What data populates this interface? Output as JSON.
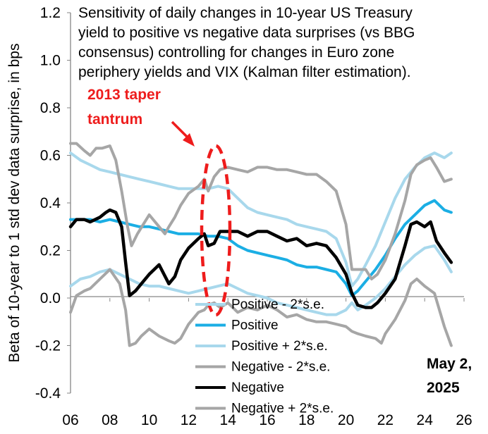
{
  "chart_data": {
    "type": "line",
    "title": "Sensitivity of daily changes in 10-year US Treasury yield to positive vs negative data surprises (vs BBG consensus) controlling for changes in Euro zone periphery yields and VIX (Kalman filter estimation).",
    "title_lines": [
      "Sensitivity of daily changes in 10-year US Treasury",
      "yield to positive vs negative data surprises (vs BBG",
      "consensus) controlling for changes in Euro zone",
      "periphery yields and VIX (Kalman filter estimation)."
    ],
    "ylabel": "Beta of 10-year to 1 std dev data surprise, in bps",
    "xlabel": "",
    "xlim": [
      2006,
      2026
    ],
    "ylim": [
      -0.4,
      1.2
    ],
    "x_ticks": [
      "06",
      "08",
      "10",
      "12",
      "14",
      "16",
      "18",
      "20",
      "22",
      "24",
      "26"
    ],
    "y_ticks": [
      "-0.4",
      "-0.2",
      "0.0",
      "0.2",
      "0.4",
      "0.6",
      "0.8",
      "1.0",
      "1.2"
    ],
    "grid": false,
    "legend_position": "bottom-center",
    "annotations": {
      "taper": {
        "line1": "2013 taper",
        "line2": "tantrum",
        "color": "#ee1c1c"
      },
      "date": {
        "line1": "May 2,",
        "line2": "2025"
      }
    },
    "colors": {
      "positive": "#1baee4",
      "positive_band": "#a8d8ec",
      "negative": "#000000",
      "negative_band": "#a6a6a6",
      "highlight": "#ee1c1c"
    },
    "series": [
      {
        "name": "Positive - 2*s.e.",
        "color": "#a8d8ec",
        "x": [
          2006.0,
          2006.5,
          2007.0,
          2007.5,
          2008.0,
          2008.5,
          2009.0,
          2009.5,
          2010.0,
          2010.5,
          2011.0,
          2011.5,
          2012.0,
          2012.5,
          2013.0,
          2013.5,
          2014.0,
          2014.5,
          2015.0,
          2015.5,
          2016.0,
          2016.5,
          2017.0,
          2017.5,
          2018.0,
          2018.5,
          2019.0,
          2019.5,
          2020.0,
          2020.3,
          2020.6,
          2021.0,
          2021.5,
          2022.0,
          2022.5,
          2023.0,
          2023.5,
          2024.0,
          2024.5,
          2025.0,
          2025.35
        ],
        "values": [
          0.05,
          0.08,
          0.09,
          0.11,
          0.12,
          0.1,
          0.08,
          0.06,
          0.05,
          0.05,
          0.04,
          0.03,
          0.02,
          0.03,
          0.04,
          0.05,
          0.06,
          0.04,
          0.02,
          0.01,
          0.0,
          -0.02,
          -0.03,
          -0.04,
          -0.05,
          -0.06,
          -0.07,
          -0.07,
          -0.05,
          -0.02,
          -0.05,
          -0.03,
          0.0,
          0.04,
          0.09,
          0.14,
          0.18,
          0.21,
          0.22,
          0.16,
          0.11
        ]
      },
      {
        "name": "Positive",
        "color": "#1baee4",
        "x": [
          2006.0,
          2006.5,
          2007.0,
          2007.5,
          2008.0,
          2008.5,
          2009.0,
          2009.5,
          2010.0,
          2010.5,
          2011.0,
          2011.5,
          2012.0,
          2012.5,
          2013.0,
          2013.5,
          2014.0,
          2014.5,
          2015.0,
          2015.5,
          2016.0,
          2016.5,
          2017.0,
          2017.5,
          2018.0,
          2018.5,
          2019.0,
          2019.5,
          2020.0,
          2020.3,
          2020.6,
          2021.0,
          2021.5,
          2022.0,
          2022.5,
          2023.0,
          2023.5,
          2024.0,
          2024.5,
          2025.0,
          2025.35
        ],
        "values": [
          0.33,
          0.33,
          0.33,
          0.32,
          0.33,
          0.32,
          0.31,
          0.3,
          0.3,
          0.29,
          0.28,
          0.27,
          0.27,
          0.27,
          0.26,
          0.26,
          0.25,
          0.22,
          0.2,
          0.19,
          0.18,
          0.17,
          0.16,
          0.14,
          0.13,
          0.13,
          0.12,
          0.11,
          0.06,
          0.01,
          0.03,
          0.07,
          0.12,
          0.18,
          0.25,
          0.31,
          0.35,
          0.39,
          0.41,
          0.37,
          0.36
        ]
      },
      {
        "name": "Positive + 2*s.e.",
        "color": "#a8d8ec",
        "x": [
          2006.0,
          2006.5,
          2007.0,
          2007.5,
          2008.0,
          2008.5,
          2009.0,
          2009.5,
          2010.0,
          2010.5,
          2011.0,
          2011.5,
          2012.0,
          2012.5,
          2013.0,
          2013.5,
          2014.0,
          2014.5,
          2015.0,
          2015.5,
          2016.0,
          2016.5,
          2017.0,
          2017.5,
          2018.0,
          2018.5,
          2019.0,
          2019.5,
          2020.0,
          2020.3,
          2020.6,
          2021.0,
          2021.5,
          2022.0,
          2022.5,
          2023.0,
          2023.5,
          2024.0,
          2024.5,
          2025.0,
          2025.35
        ],
        "values": [
          0.61,
          0.58,
          0.56,
          0.54,
          0.53,
          0.52,
          0.51,
          0.5,
          0.49,
          0.48,
          0.47,
          0.46,
          0.46,
          0.46,
          0.46,
          0.47,
          0.46,
          0.42,
          0.38,
          0.36,
          0.35,
          0.34,
          0.33,
          0.31,
          0.3,
          0.29,
          0.28,
          0.25,
          0.15,
          0.05,
          0.08,
          0.14,
          0.22,
          0.32,
          0.42,
          0.5,
          0.55,
          0.59,
          0.61,
          0.59,
          0.61
        ]
      },
      {
        "name": "Negative - 2*s.e.",
        "color": "#a6a6a6",
        "x": [
          2006.0,
          2006.3,
          2006.7,
          2007.0,
          2007.5,
          2008.0,
          2008.5,
          2008.8,
          2009.0,
          2009.3,
          2009.6,
          2010.0,
          2010.5,
          2011.0,
          2011.3,
          2011.6,
          2012.0,
          2012.5,
          2012.8,
          2013.0,
          2013.3,
          2013.6,
          2014.0,
          2014.5,
          2015.0,
          2015.5,
          2016.0,
          2016.5,
          2017.0,
          2017.5,
          2018.0,
          2018.5,
          2019.0,
          2019.5,
          2020.0,
          2020.3,
          2020.6,
          2021.0,
          2021.5,
          2021.8,
          2022.0,
          2022.5,
          2023.0,
          2023.3,
          2023.6,
          2024.0,
          2024.5,
          2025.0,
          2025.35
        ],
        "values": [
          -0.06,
          0.01,
          0.03,
          0.04,
          0.08,
          0.12,
          0.06,
          -0.05,
          -0.2,
          -0.19,
          -0.16,
          -0.13,
          -0.16,
          -0.18,
          -0.19,
          -0.17,
          -0.11,
          -0.06,
          -0.05,
          -0.03,
          -0.02,
          -0.04,
          -0.02,
          -0.06,
          -0.04,
          -0.05,
          -0.03,
          -0.05,
          -0.08,
          -0.07,
          -0.09,
          -0.1,
          -0.1,
          -0.11,
          -0.12,
          -0.14,
          -0.15,
          -0.16,
          -0.17,
          -0.19,
          -0.15,
          -0.09,
          -0.01,
          0.06,
          0.08,
          0.05,
          0.02,
          -0.12,
          -0.2
        ]
      },
      {
        "name": "Negative",
        "color": "#000000",
        "x": [
          2006.0,
          2006.3,
          2006.7,
          2007.0,
          2007.5,
          2007.8,
          2008.0,
          2008.3,
          2008.6,
          2008.8,
          2009.0,
          2009.3,
          2009.6,
          2010.0,
          2010.5,
          2011.0,
          2011.3,
          2011.6,
          2012.0,
          2012.5,
          2012.8,
          2013.0,
          2013.3,
          2013.6,
          2014.0,
          2014.5,
          2015.0,
          2015.5,
          2016.0,
          2016.5,
          2017.0,
          2017.5,
          2018.0,
          2018.5,
          2019.0,
          2019.5,
          2020.0,
          2020.3,
          2020.6,
          2021.0,
          2021.3,
          2021.6,
          2022.0,
          2022.5,
          2023.0,
          2023.3,
          2023.6,
          2024.0,
          2024.3,
          2024.6,
          2025.0,
          2025.35
        ],
        "values": [
          0.3,
          0.33,
          0.33,
          0.32,
          0.34,
          0.36,
          0.37,
          0.36,
          0.3,
          0.15,
          0.01,
          0.03,
          0.06,
          0.1,
          0.14,
          0.06,
          0.09,
          0.16,
          0.21,
          0.25,
          0.27,
          0.22,
          0.23,
          0.28,
          0.28,
          0.28,
          0.26,
          0.28,
          0.28,
          0.26,
          0.24,
          0.25,
          0.22,
          0.23,
          0.22,
          0.17,
          0.1,
          0.02,
          -0.03,
          -0.04,
          -0.04,
          -0.02,
          0.02,
          0.08,
          0.22,
          0.31,
          0.32,
          0.3,
          0.32,
          0.24,
          0.19,
          0.15
        ]
      },
      {
        "name": "Negative + 2*s.e.",
        "color": "#a6a6a6",
        "x": [
          2006.0,
          2006.3,
          2006.7,
          2007.0,
          2007.3,
          2007.6,
          2008.0,
          2008.3,
          2008.6,
          2008.9,
          2009.1,
          2009.4,
          2009.7,
          2010.0,
          2010.5,
          2010.8,
          2011.0,
          2011.3,
          2011.6,
          2012.0,
          2012.5,
          2012.8,
          2013.0,
          2013.3,
          2013.6,
          2014.0,
          2014.5,
          2015.0,
          2015.5,
          2016.0,
          2016.5,
          2017.0,
          2017.5,
          2018.0,
          2018.5,
          2019.0,
          2019.5,
          2020.0,
          2020.3,
          2020.6,
          2021.0,
          2021.3,
          2021.6,
          2022.0,
          2022.5,
          2023.0,
          2023.3,
          2023.6,
          2024.0,
          2024.3,
          2024.6,
          2025.0,
          2025.35
        ],
        "values": [
          0.65,
          0.65,
          0.62,
          0.6,
          0.63,
          0.63,
          0.64,
          0.58,
          0.45,
          0.3,
          0.22,
          0.27,
          0.31,
          0.35,
          0.3,
          0.27,
          0.3,
          0.34,
          0.39,
          0.44,
          0.47,
          0.5,
          0.45,
          0.51,
          0.54,
          0.55,
          0.54,
          0.53,
          0.55,
          0.55,
          0.54,
          0.54,
          0.53,
          0.52,
          0.52,
          0.49,
          0.45,
          0.31,
          0.12,
          0.12,
          0.12,
          0.08,
          0.1,
          0.16,
          0.27,
          0.41,
          0.52,
          0.56,
          0.58,
          0.59,
          0.55,
          0.49,
          0.5
        ]
      }
    ]
  }
}
